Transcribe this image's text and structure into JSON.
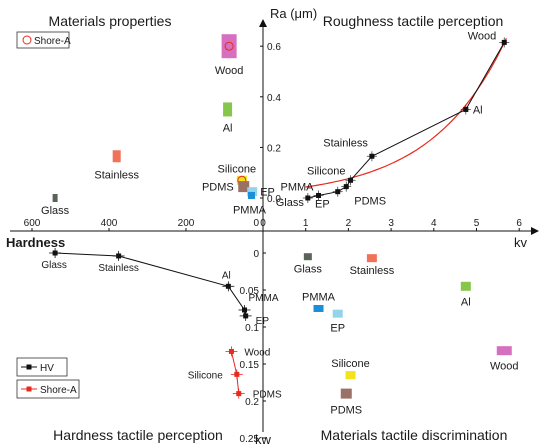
{
  "quadrant_titles": {
    "top_left": "Materials properties",
    "top_right": "Roughness tactile perception",
    "bottom_left": "Hardness tactile perception",
    "bottom_right": "Materials tactile discrimination"
  },
  "axis_labels": {
    "ra": "Ra (μm)",
    "kv": "kv",
    "hardness": "Hardness",
    "kw": "kw"
  },
  "colors": {
    "glass": "#5b6359",
    "stainless": "#f07258",
    "al": "#86c64a",
    "wood": "#d76fbf",
    "silicone": "#f2e31c",
    "pdms": "#9b7066",
    "ep": "#92d4ea",
    "pmma": "#1b8fd8",
    "hv_line": "#111111",
    "shore_line": "#e8291c",
    "fit_curve": "#e8291c"
  },
  "chart_data": [
    {
      "type": "scatter",
      "quadrant": "top-right",
      "title": "Roughness tactile perception",
      "xlabel": "kv",
      "ylabel": "Ra (μm)",
      "xlim": [
        0,
        6
      ],
      "ylim": [
        -0.08,
        0.68
      ],
      "xticks": [
        0,
        1,
        2,
        3,
        4,
        5,
        6
      ],
      "yticks": [
        0.0,
        0.2,
        0.4,
        0.6
      ],
      "points": [
        {
          "label": "Glass",
          "x": 1.05,
          "y": 0.0
        },
        {
          "label": "PMMA",
          "x": 1.3,
          "y": 0.01
        },
        {
          "label": "EP",
          "x": 1.75,
          "y": 0.025
        },
        {
          "label": "PDMS",
          "x": 1.95,
          "y": 0.045
        },
        {
          "label": "Silicone",
          "x": 2.05,
          "y": 0.07
        },
        {
          "label": "Stainless",
          "x": 2.55,
          "y": 0.165
        },
        {
          "label": "Al",
          "x": 4.75,
          "y": 0.35
        },
        {
          "label": "Wood",
          "x": 5.65,
          "y": 0.615
        }
      ],
      "fit_curve": {
        "form": "exponential",
        "a": 0.0245,
        "b": 0.57
      }
    },
    {
      "type": "scatter",
      "quadrant": "top-left",
      "title": "Materials properties",
      "xlabel": "Hardness",
      "legend": {
        "label": "Shore-A",
        "placement": "top-left"
      },
      "xticks": [
        600,
        400,
        200,
        0
      ],
      "points": [
        {
          "label": "Glass",
          "hardness": 540,
          "ra": 0.0
        },
        {
          "label": "Stainless",
          "hardness": 380,
          "ra": 0.165
        },
        {
          "label": "Al",
          "hardness": 92,
          "ra": 0.35
        },
        {
          "label": "Wood",
          "hardness": 88,
          "ra": 0.6
        },
        {
          "label": "Silicone",
          "hardness": 55,
          "ra": 0.07
        },
        {
          "label": "PDMS",
          "hardness": 50,
          "ra": 0.045
        },
        {
          "label": "EP",
          "hardness": 28,
          "ra": 0.025
        },
        {
          "label": "PMMA",
          "hardness": 30,
          "ra": 0.01
        }
      ]
    },
    {
      "type": "line",
      "quadrant": "bottom-left",
      "title": "Hardness tactile perception",
      "ylabel": "kw",
      "legend": {
        "placement": "bottom-left"
      },
      "series": [
        {
          "name": "HV",
          "points": [
            {
              "label": "Glass",
              "hardness": 540,
              "kw": 0.0
            },
            {
              "label": "Stainless",
              "hardness": 375,
              "kw": 0.004
            },
            {
              "label": "Al",
              "hardness": 90,
              "kw": 0.045
            },
            {
              "label": "PMMA",
              "hardness": 48,
              "kw": 0.077
            },
            {
              "label": "EP",
              "hardness": 45,
              "kw": 0.085
            }
          ]
        },
        {
          "name": "Shore-A",
          "points": [
            {
              "label": "Wood",
              "hardness": 82,
              "kw": 0.133
            },
            {
              "label": "Silicone",
              "hardness": 68,
              "kw": 0.164
            },
            {
              "label": "PDMS",
              "hardness": 63,
              "kw": 0.19
            }
          ]
        }
      ]
    },
    {
      "type": "scatter",
      "quadrant": "bottom-right",
      "title": "Materials tactile discrimination",
      "ylabel": "kw",
      "ylim": [
        -0.01,
        0.25
      ],
      "yticks": [
        0,
        0.05,
        0.1,
        0.15,
        0.2,
        0.25
      ],
      "points": [
        {
          "label": "Glass",
          "kv": 1.05,
          "kw": 0.005
        },
        {
          "label": "Stainless",
          "kv": 2.55,
          "kw": 0.007
        },
        {
          "label": "Al",
          "kv": 4.75,
          "kw": 0.045
        },
        {
          "label": "PMMA",
          "kv": 1.3,
          "kw": 0.075
        },
        {
          "label": "EP",
          "kv": 1.75,
          "kw": 0.082
        },
        {
          "label": "Wood",
          "kv": 5.65,
          "kw": 0.132
        },
        {
          "label": "Silicone",
          "kv": 2.05,
          "kw": 0.165
        },
        {
          "label": "PDMS",
          "kv": 1.95,
          "kw": 0.19
        }
      ]
    }
  ]
}
